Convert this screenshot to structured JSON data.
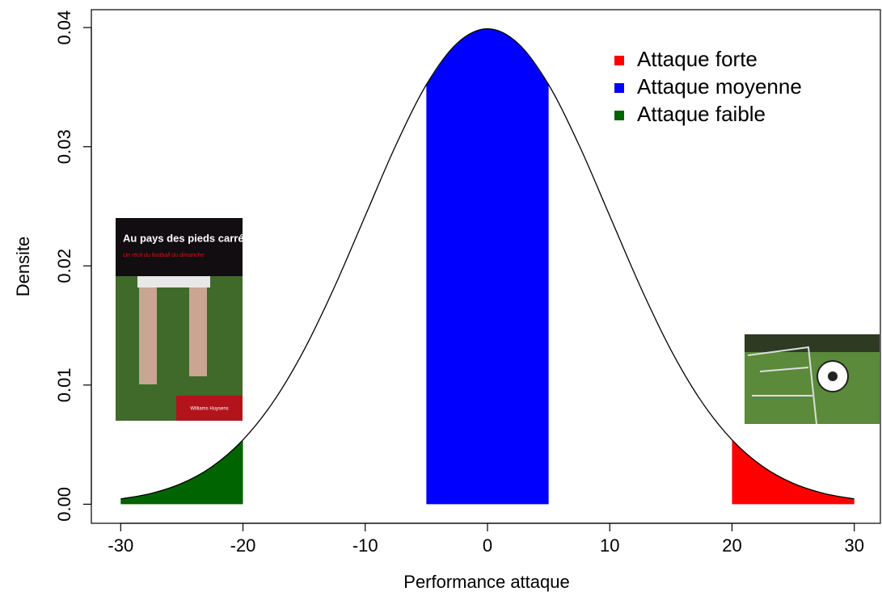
{
  "chart_data": {
    "type": "area",
    "xlabel": "Performance attaque",
    "ylabel": "Densite",
    "x": [
      -30,
      -27.5,
      -25,
      -22.5,
      -20,
      -17.5,
      -15,
      -12.5,
      -10,
      -7.5,
      -5,
      -2.5,
      0,
      2.5,
      5,
      7.5,
      10,
      12.5,
      15,
      17.5,
      20,
      22.5,
      25,
      27.5,
      30
    ],
    "values": [
      0.000443,
      0.000909,
      0.001753,
      0.003174,
      0.005399,
      0.008628,
      0.012952,
      0.018265,
      0.024197,
      0.030114,
      0.035207,
      0.038667,
      0.039894,
      0.038667,
      0.035207,
      0.030114,
      0.024197,
      0.018265,
      0.012952,
      0.008628,
      0.005399,
      0.003174,
      0.001753,
      0.000909,
      0.000443
    ],
    "line_color": "#000000",
    "regions": [
      {
        "name": "Attaque forte",
        "color": "#ff0000",
        "from": 20,
        "to": 30
      },
      {
        "name": "Attaque moyenne",
        "color": "#0000ff",
        "from": -5,
        "to": 5
      },
      {
        "name": "Attaque faible",
        "color": "#006400",
        "from": -30,
        "to": -20
      }
    ],
    "xlim": [
      -32.4,
      32.4
    ],
    "ylim": [
      -0.0016,
      0.0415
    ],
    "xticks": [
      -30,
      -20,
      -10,
      0,
      10,
      20,
      30
    ],
    "yticks": [
      {
        "value": 0,
        "label": "0.00"
      },
      0.01,
      0.02,
      0.03,
      0.04
    ],
    "legend": "top-right",
    "images": [
      {
        "title": "Au pays des pieds carrés",
        "subtitle": "Un récit du football du dimanche",
        "author": "Williams Huysens"
      }
    ]
  }
}
